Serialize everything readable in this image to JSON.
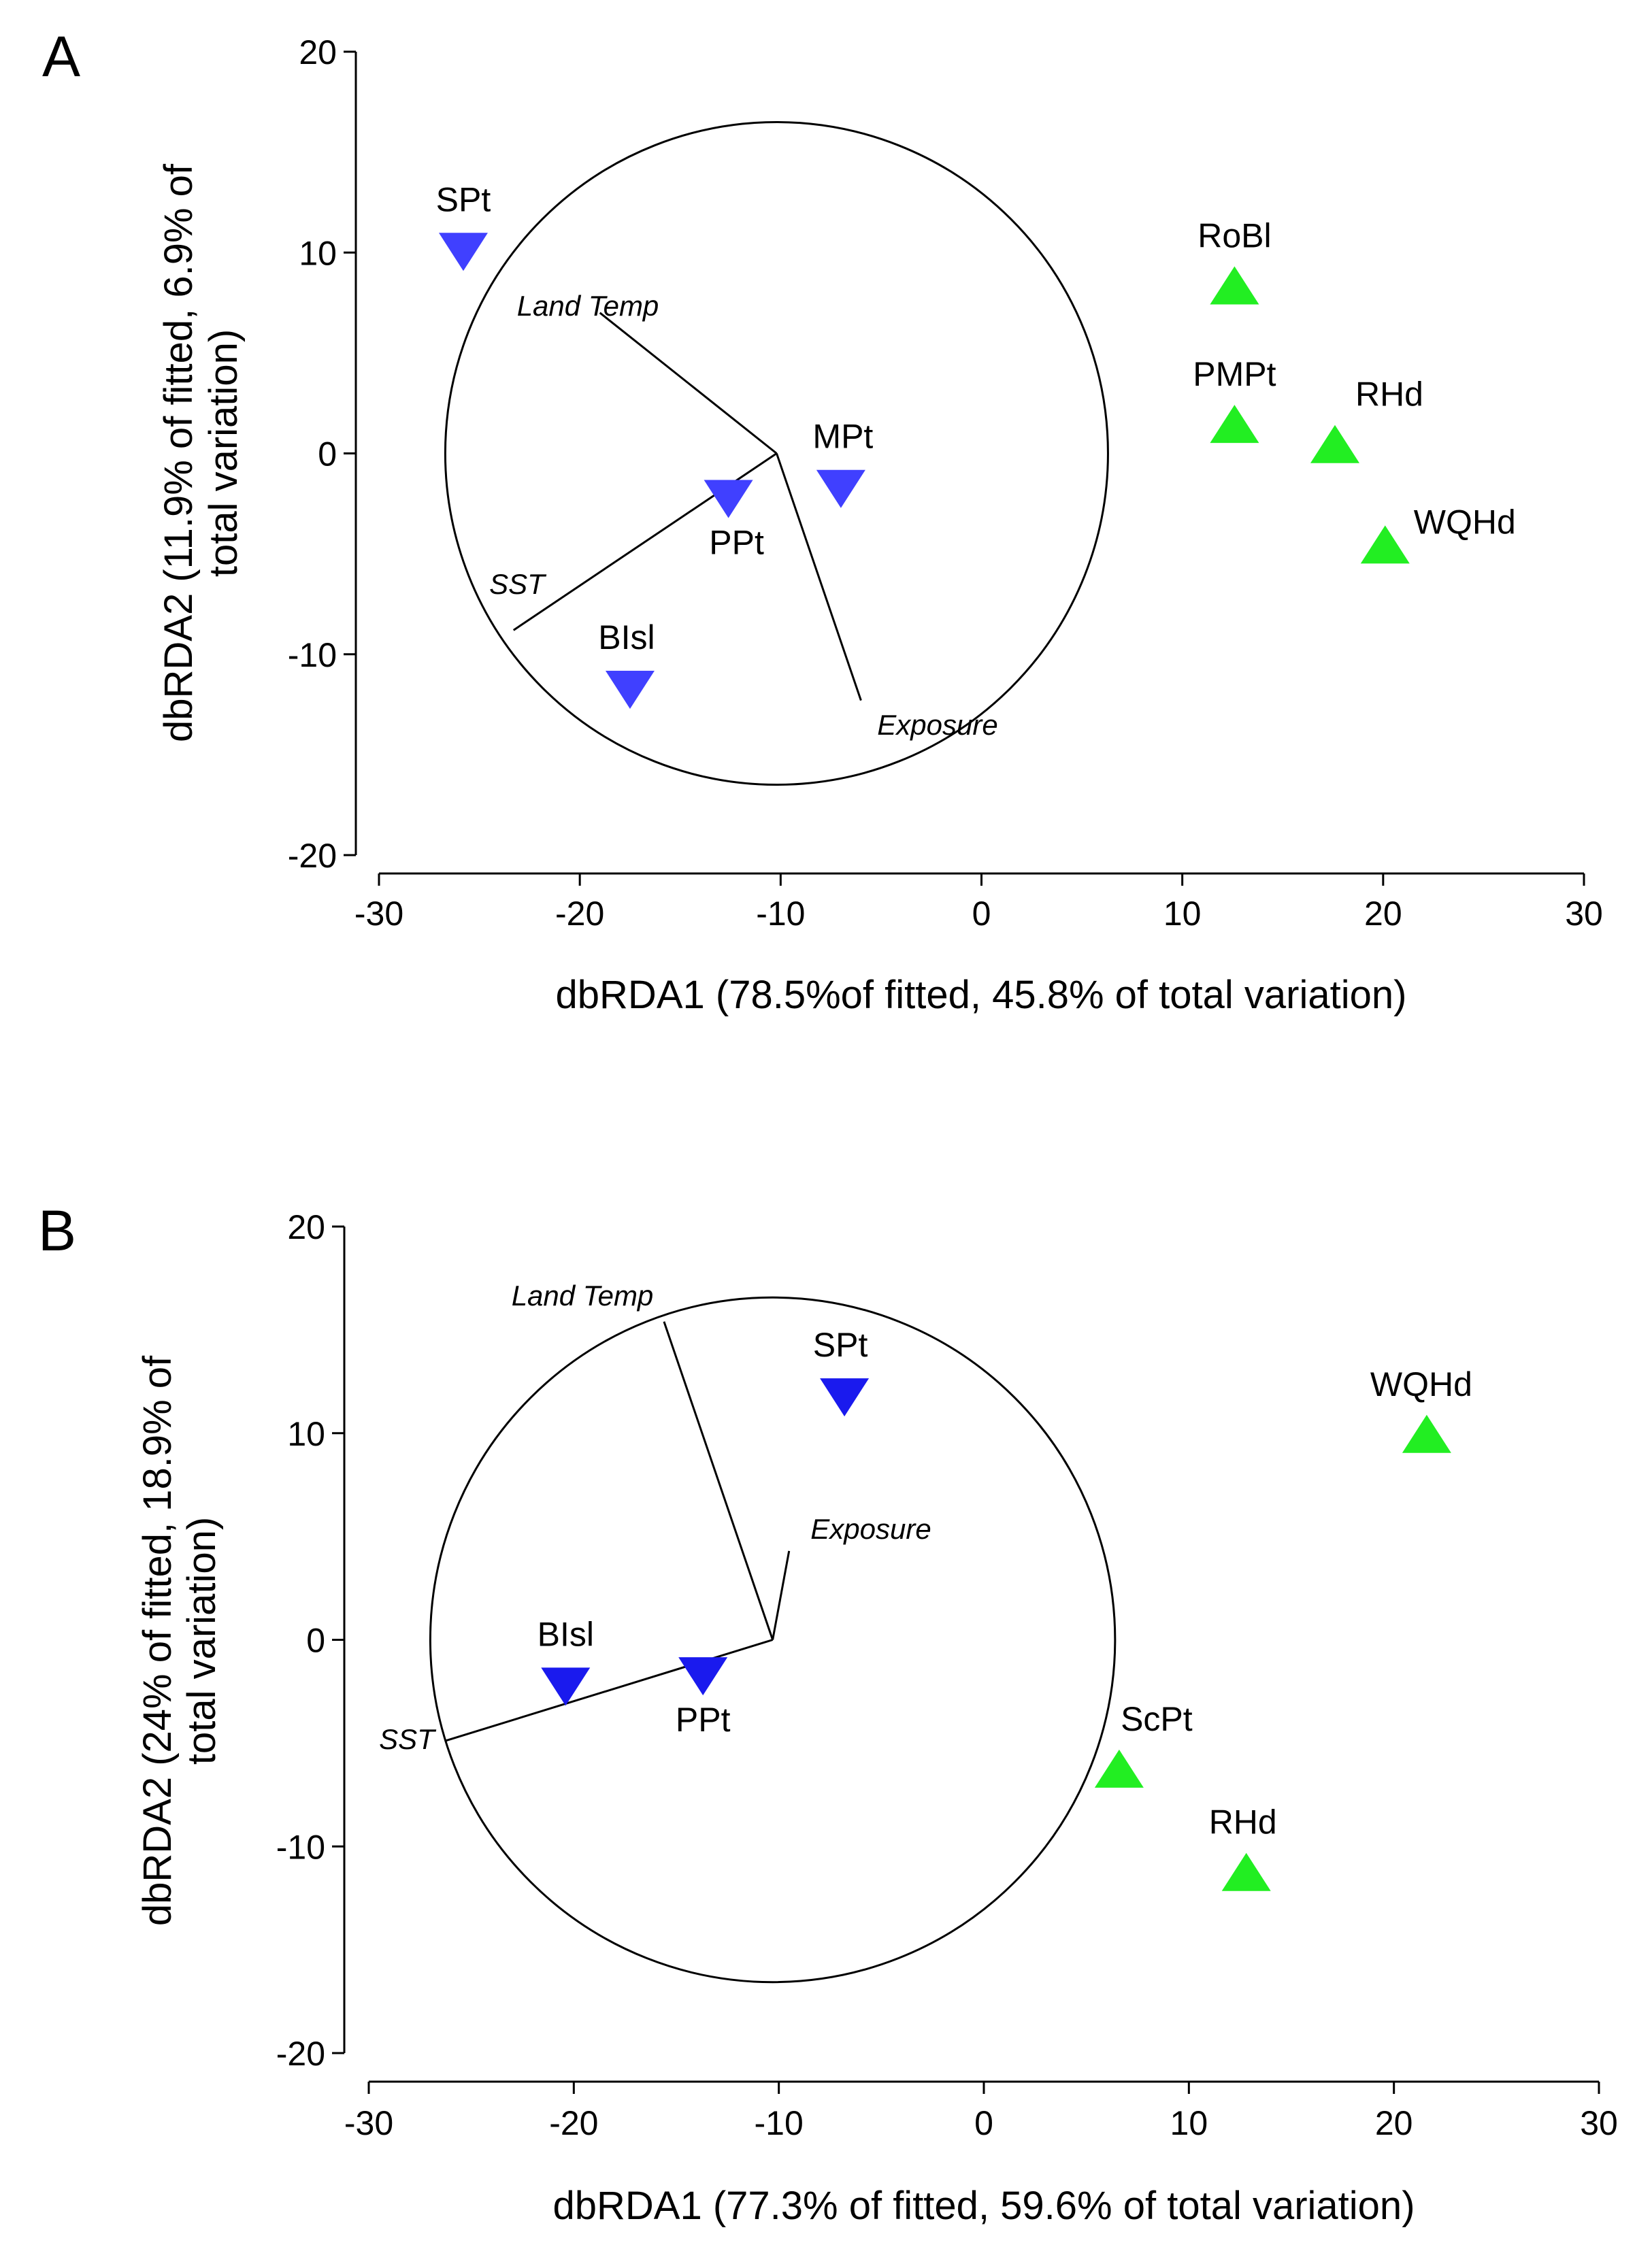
{
  "chart_data": [
    {
      "type": "scatter",
      "panel": "A",
      "xlabel": "dbRDA1 (78.5%of fitted, 45.8% of total variation)",
      "ylabel": [
        "dbRDA2 (11.9% of fitted, 6.9% of",
        "total variation)"
      ],
      "xlim": [
        -30,
        30
      ],
      "ylim": [
        -20,
        20
      ],
      "xticks": [
        -30,
        -20,
        -10,
        0,
        10,
        20,
        30
      ],
      "yticks": [
        20,
        10,
        0,
        -10,
        -20
      ],
      "grid": false,
      "correlation_circle": {
        "center": [
          -10.2,
          0
        ],
        "radius": 16.5
      },
      "vector_origin": [
        -10.2,
        0
      ],
      "vectors": [
        {
          "name": "Land Temp",
          "end": [
            -19.0,
            7.0
          ]
        },
        {
          "name": "SST",
          "end": [
            -23.3,
            -8.8
          ]
        },
        {
          "name": "Exposure",
          "end": [
            -6.0,
            -12.3
          ]
        }
      ],
      "series": [
        {
          "name": "group-1",
          "marker": "triangle-down",
          "color": "#4040ff",
          "points": [
            {
              "label": "SPt",
              "x": -25.8,
              "y": 10.1
            },
            {
              "label": "MPt",
              "x": -7.0,
              "y": -1.7
            },
            {
              "label": "PPt",
              "x": -12.6,
              "y": -2.2
            },
            {
              "label": "BIsl",
              "x": -17.5,
              "y": -11.7
            }
          ]
        },
        {
          "name": "group-2",
          "marker": "triangle-up",
          "color": "#22ee22",
          "points": [
            {
              "label": "RoBl",
              "x": 12.6,
              "y": 8.3
            },
            {
              "label": "PMPt",
              "x": 12.6,
              "y": 1.4
            },
            {
              "label": "RHd",
              "x": 17.6,
              "y": 0.4
            },
            {
              "label": "WQHd",
              "x": 20.1,
              "y": -4.6
            }
          ]
        }
      ]
    },
    {
      "type": "scatter",
      "panel": "B",
      "xlabel": "dbRDA1 (77.3% of fitted, 59.6% of total variation)",
      "ylabel": [
        "dbRDA2 (24% of fitted, 18.9% of",
        "total variation)"
      ],
      "xlim": [
        -30,
        30
      ],
      "ylim": [
        -20,
        20
      ],
      "xticks": [
        -30,
        -20,
        -10,
        0,
        10,
        20,
        30
      ],
      "yticks": [
        20,
        10,
        0,
        -10,
        -20
      ],
      "grid": false,
      "correlation_circle": {
        "center": [
          -10.3,
          0
        ],
        "radius": 16.7
      },
      "vector_origin": [
        -10.3,
        0
      ],
      "vectors": [
        {
          "name": "Land Temp",
          "end": [
            -15.6,
            15.4
          ]
        },
        {
          "name": "SST",
          "end": [
            -26.3,
            -4.9
          ]
        },
        {
          "name": "Exposure",
          "end": [
            -9.5,
            4.3
          ]
        }
      ],
      "series": [
        {
          "name": "group-1",
          "marker": "triangle-down",
          "color": "#1a1aee",
          "points": [
            {
              "label": "SPt",
              "x": -6.8,
              "y": 11.8
            },
            {
              "label": "BIsl",
              "x": -20.4,
              "y": -2.2
            },
            {
              "label": "PPt",
              "x": -13.7,
              "y": -1.7
            }
          ]
        },
        {
          "name": "group-2",
          "marker": "triangle-up",
          "color": "#22ee22",
          "points": [
            {
              "label": "WQHd",
              "x": 21.6,
              "y": 9.9
            },
            {
              "label": "ScPt",
              "x": 6.6,
              "y": -6.3
            },
            {
              "label": "RHd",
              "x": 12.8,
              "y": -11.3
            }
          ]
        }
      ]
    }
  ]
}
